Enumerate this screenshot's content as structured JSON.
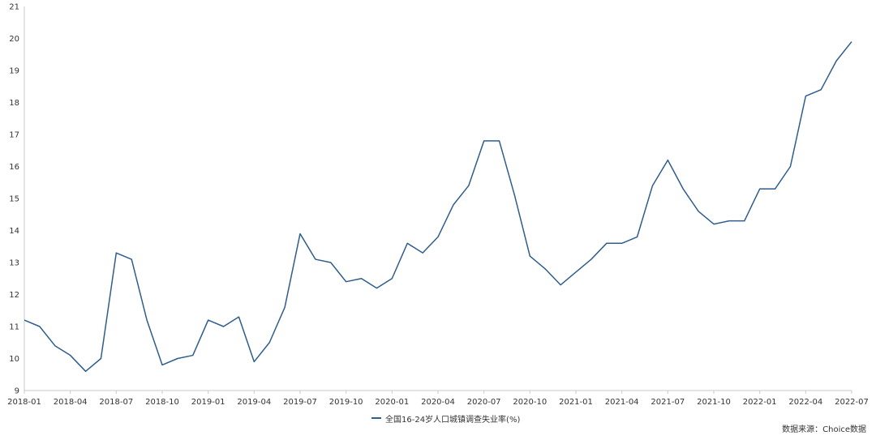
{
  "chart_data": {
    "type": "line",
    "x": [
      "2018-01",
      "2018-02",
      "2018-03",
      "2018-04",
      "2018-05",
      "2018-06",
      "2018-07",
      "2018-08",
      "2018-09",
      "2018-10",
      "2018-11",
      "2018-12",
      "2019-01",
      "2019-02",
      "2019-03",
      "2019-04",
      "2019-05",
      "2019-06",
      "2019-07",
      "2019-08",
      "2019-09",
      "2019-10",
      "2019-11",
      "2019-12",
      "2020-01",
      "2020-02",
      "2020-03",
      "2020-04",
      "2020-05",
      "2020-06",
      "2020-07",
      "2020-08",
      "2020-09",
      "2020-10",
      "2020-11",
      "2020-12",
      "2021-01",
      "2021-02",
      "2021-03",
      "2021-04",
      "2021-05",
      "2021-06",
      "2021-07",
      "2021-08",
      "2021-09",
      "2021-10",
      "2021-11",
      "2021-12",
      "2022-01",
      "2022-02",
      "2022-03",
      "2022-04",
      "2022-05",
      "2022-06",
      "2022-07"
    ],
    "xticks": [
      "2018-01",
      "2018-04",
      "2018-07",
      "2018-10",
      "2019-01",
      "2019-04",
      "2019-07",
      "2019-10",
      "2020-01",
      "2020-04",
      "2020-07",
      "2020-10",
      "2021-01",
      "2021-04",
      "2021-07",
      "2021-10",
      "2022-01",
      "2022-04",
      "2022-07"
    ],
    "series": [
      {
        "name": "全国16-24岁人口城镇调查失业率(%)",
        "color": "#2f5d8c",
        "values": [
          11.2,
          11.0,
          10.4,
          10.1,
          9.6,
          10.0,
          13.3,
          13.1,
          11.2,
          9.8,
          10.0,
          10.1,
          11.2,
          11.0,
          11.3,
          9.9,
          10.5,
          11.6,
          13.9,
          13.1,
          13.0,
          12.4,
          12.5,
          12.2,
          12.5,
          13.6,
          13.3,
          13.8,
          14.8,
          15.4,
          16.8,
          16.8,
          15.1,
          13.2,
          12.8,
          12.3,
          12.7,
          13.1,
          13.6,
          13.6,
          13.8,
          15.4,
          16.2,
          15.3,
          14.6,
          14.2,
          14.3,
          14.3,
          15.3,
          15.3,
          16.0,
          18.2,
          18.4,
          19.3,
          19.9
        ]
      }
    ],
    "ylim": [
      9,
      21
    ],
    "yticks": [
      9,
      10,
      11,
      12,
      13,
      14,
      15,
      16,
      17,
      18,
      19,
      20,
      21
    ],
    "grid": false,
    "legend_position": "bottom-center"
  },
  "legend": {
    "label": "全国16-24岁人口城镇调查失业率(%)"
  },
  "source": "数据来源：Choice数据"
}
